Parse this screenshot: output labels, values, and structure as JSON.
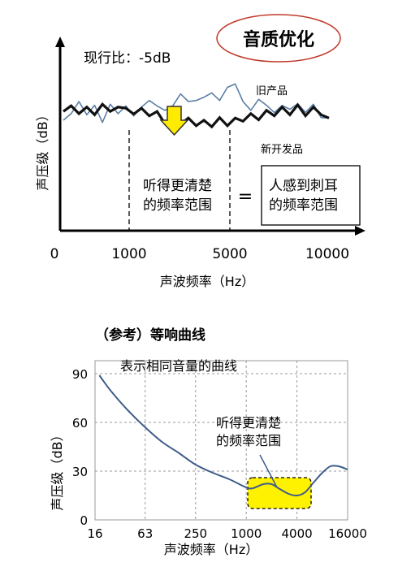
{
  "badge": {
    "label": "音质优化",
    "color": "#c0392b"
  },
  "chart_data": [
    {
      "type": "line",
      "annotation_ratio": "现行比：-5dB",
      "ylabel": "声压级（dB）",
      "xlabel": "声波频率（Hz）",
      "x_ticks": [
        "0",
        "1000",
        "5000",
        "10000"
      ],
      "series": [
        {
          "name": "旧产品",
          "color": "#5b7fa6",
          "values": [
            0.0,
            3.0,
            8.5,
            2.5,
            6.8,
            -1.0,
            7.3,
            3.0,
            6.5,
            2.0,
            6.0,
            9.0,
            6.5,
            4.5,
            6.5,
            12.0,
            8.5,
            9.0,
            10.5,
            12.5,
            9.0,
            15.0,
            16.5,
            8.5,
            4.5,
            9.5,
            6.8,
            3.5,
            6.7,
            5.0,
            7.5,
            3.6,
            7.3,
            1.2,
            1.0
          ]
        },
        {
          "name": "新开发品",
          "color": "#111111",
          "values": [
            4.0,
            6.6,
            3.0,
            6.0,
            2.5,
            7.3,
            4.0,
            6.0,
            5.5,
            2.8,
            5.5,
            2.0,
            4.0,
            -1.5,
            1.5,
            -1.8,
            1.0,
            -2.5,
            0.0,
            -3.0,
            1.2,
            -2.5,
            1.0,
            -0.5,
            3.0,
            0.2,
            4.5,
            2.0,
            6.0,
            2.5,
            7.0,
            2.0,
            6.0,
            2.5,
            1.0
          ]
        }
      ],
      "range_label": "听得更清楚\n的频率范围",
      "equals": "=",
      "box_label": "人感到刺耳\n的频率范围",
      "arrow_color": "#ffeb00"
    },
    {
      "type": "line",
      "title": "（参考）等响曲线",
      "curve_label": "表示相同音量的曲线",
      "ylabel": "声压级（dB）",
      "xlabel": "声波频率（Hz）",
      "x_ticks": [
        "16",
        "63",
        "250",
        "1000",
        "4000",
        "16000"
      ],
      "y_ticks": [
        "0",
        "30",
        "60",
        "90"
      ],
      "ylim": [
        0,
        90
      ],
      "x_scale": "log",
      "series": [
        {
          "color": "#3e5c8a",
          "points": [
            [
              18,
              89
            ],
            [
              25,
              79
            ],
            [
              40,
              67
            ],
            [
              63,
              57
            ],
            [
              100,
              48
            ],
            [
              160,
              41
            ],
            [
              250,
              34
            ],
            [
              400,
              29
            ],
            [
              630,
              25
            ],
            [
              1000,
              20
            ],
            [
              1200,
              19.5
            ],
            [
              1600,
              22
            ],
            [
              2000,
              22
            ],
            [
              2500,
              19
            ],
            [
              3200,
              16
            ],
            [
              4000,
              15
            ],
            [
              5000,
              17
            ],
            [
              6300,
              23
            ],
            [
              8000,
              29
            ],
            [
              10000,
              33
            ],
            [
              12500,
              33
            ],
            [
              16000,
              31
            ]
          ]
        }
      ],
      "highlight_label": "听得更清楚\n的频率范围",
      "highlight_color": "#fff200"
    }
  ]
}
